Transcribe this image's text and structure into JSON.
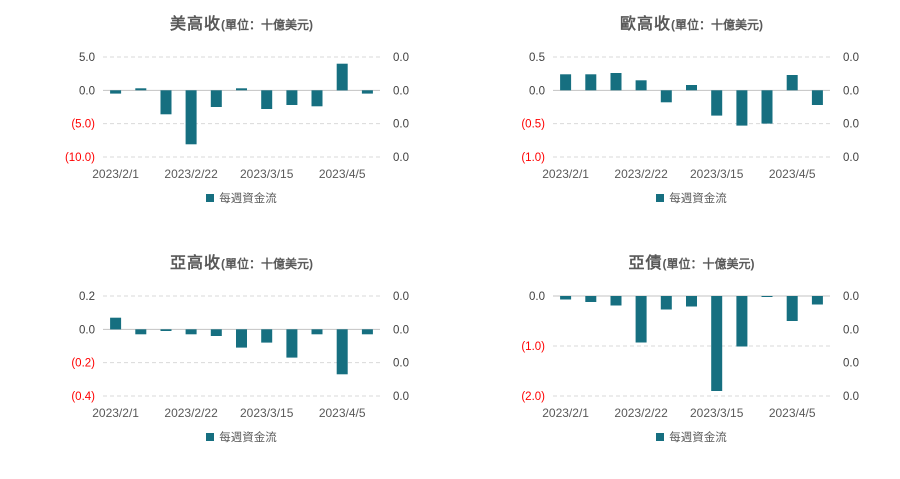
{
  "colors": {
    "bar": "#166F80",
    "tick_label": "#404040",
    "negative_tick": "#FF0000",
    "date_label": "#595959",
    "gridline": "#D9D9D9",
    "zero_line": "#C3C3C3"
  },
  "chart_data": [
    {
      "type": "bar",
      "title": "美高收",
      "subtitle": "(單位：十億美元)",
      "legend": "每週資金流",
      "ylim": [
        -10,
        5
      ],
      "left_ticks": [
        {
          "label": "5.0",
          "value": 5
        },
        {
          "label": "0.0",
          "value": 0
        },
        {
          "label": "(5.0)",
          "value": -5
        },
        {
          "label": "(10.0)",
          "value": -10
        }
      ],
      "right_ticks": [
        "0.0",
        "0.0",
        "0.0",
        "0.0"
      ],
      "x_tick_labels": [
        "2023/2/1",
        "2023/2/22",
        "2023/3/15",
        "2023/4/5"
      ],
      "x_tick_indices": [
        0,
        3,
        6,
        9
      ],
      "values": [
        -0.5,
        0.3,
        -3.6,
        -8.1,
        -2.5,
        0.3,
        -2.8,
        -2.2,
        -2.4,
        4.0,
        -0.5
      ]
    },
    {
      "type": "bar",
      "title": "歐高收",
      "subtitle": "(單位：十億美元)",
      "legend": "每週資金流",
      "ylim": [
        -1,
        0.5
      ],
      "left_ticks": [
        {
          "label": "0.5",
          "value": 0.5
        },
        {
          "label": "0.0",
          "value": 0
        },
        {
          "label": "(0.5)",
          "value": -0.5
        },
        {
          "label": "(1.0)",
          "value": -1
        }
      ],
      "right_ticks": [
        "0.0",
        "0.0",
        "0.0",
        "0.0"
      ],
      "x_tick_labels": [
        "2023/2/1",
        "2023/2/22",
        "2023/3/15",
        "2023/4/5"
      ],
      "x_tick_indices": [
        0,
        3,
        6,
        9
      ],
      "values": [
        0.24,
        0.24,
        0.26,
        0.15,
        -0.18,
        0.08,
        -0.38,
        -0.53,
        -0.5,
        0.23,
        -0.22
      ]
    },
    {
      "type": "bar",
      "title": "亞高收",
      "subtitle": "(單位：十億美元)",
      "legend": "每週資金流",
      "ylim": [
        -0.4,
        0.2
      ],
      "left_ticks": [
        {
          "label": "0.2",
          "value": 0.2
        },
        {
          "label": "0.0",
          "value": 0
        },
        {
          "label": "(0.2)",
          "value": -0.2
        },
        {
          "label": "(0.4)",
          "value": -0.4
        }
      ],
      "right_ticks": [
        "0.0",
        "0.0",
        "0.0",
        "0.0"
      ],
      "x_tick_labels": [
        "2023/2/1",
        "2023/2/22",
        "2023/3/15",
        "2023/4/5"
      ],
      "x_tick_indices": [
        0,
        3,
        6,
        9
      ],
      "values": [
        0.07,
        -0.03,
        -0.01,
        -0.03,
        -0.04,
        -0.11,
        -0.08,
        -0.17,
        -0.03,
        -0.27,
        -0.03
      ]
    },
    {
      "type": "bar",
      "title": "亞債",
      "subtitle": "(單位：十億美元)",
      "legend": "每週資金流",
      "ylim": [
        -2,
        0
      ],
      "left_ticks": [
        {
          "label": "0.0",
          "value": 0
        },
        {
          "label": "(1.0)",
          "value": -1
        },
        {
          "label": "(2.0)",
          "value": -2
        }
      ],
      "right_ticks": [
        "0.0",
        "0.0",
        "0.0",
        "0.0"
      ],
      "x_tick_labels": [
        "2023/2/1",
        "2023/2/22",
        "2023/3/15",
        "2023/4/5"
      ],
      "x_tick_indices": [
        0,
        3,
        6,
        9
      ],
      "values": [
        -0.07,
        -0.12,
        -0.19,
        -0.93,
        -0.27,
        -0.21,
        -1.9,
        -1.01,
        -0.02,
        -0.5,
        -0.17
      ]
    }
  ]
}
